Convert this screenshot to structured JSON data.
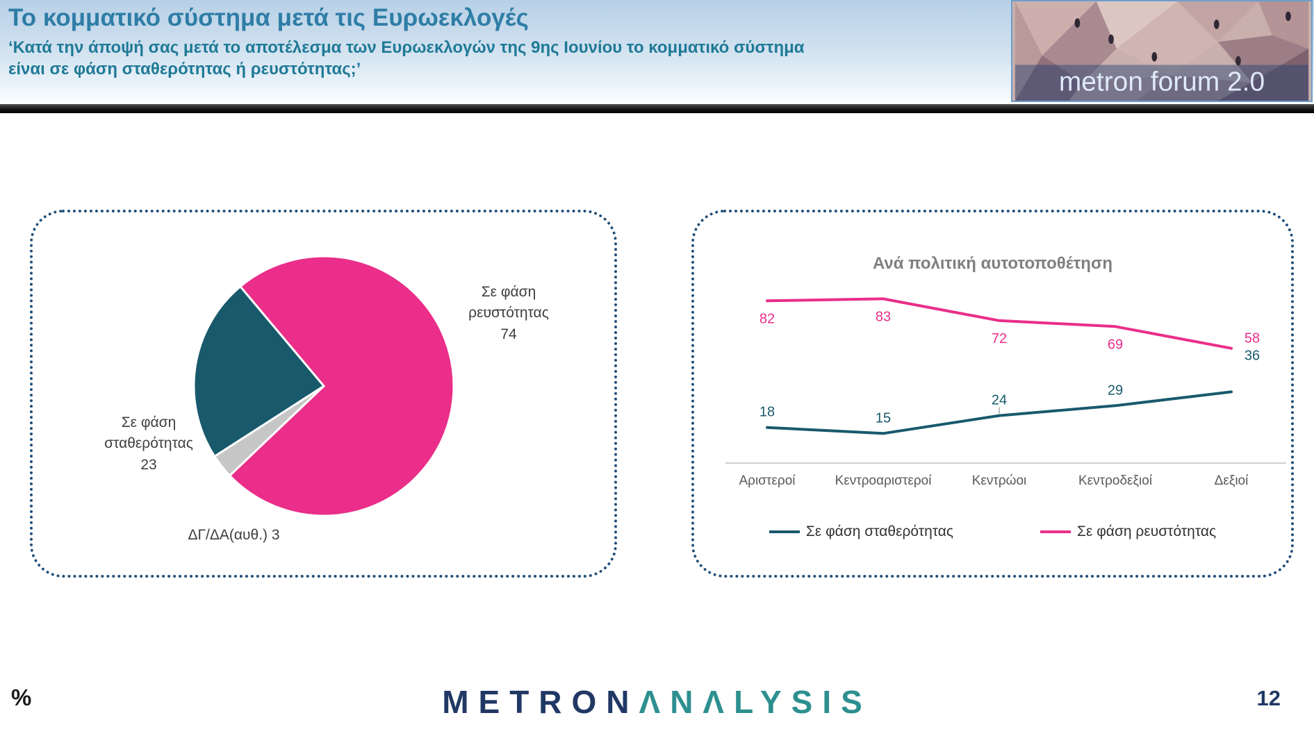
{
  "header": {
    "title": "Το κομματικό σύστημα μετά τις Ευρωεκλογές",
    "subtitle": "‘Κατά την άποψή σας μετά το αποτέλεσμα των Ευρωεκλογών της 9ης Ιουνίου το κομματικό σύστημα είναι σε φάση σταθερότητας ή ρευστότητας;’",
    "logo_text": "metron forum 2.0"
  },
  "footer": {
    "unit_label": "%",
    "brand_metron": "METRON",
    "brand_analysis": "ΛNΛLYSIS",
    "page_number": "12"
  },
  "colors": {
    "pink": "#EA2E89",
    "teal": "#19596C",
    "gray": "#C6C6C6",
    "navy": "#1F4E79"
  },
  "chart_data": [
    {
      "type": "pie",
      "title": "",
      "slices": [
        {
          "label": "Σε φάση ρευστότητας",
          "value": 74,
          "color": "#EA2E89"
        },
        {
          "label": "ΔΓ/ΔΑ(αυθ.)",
          "value": 3,
          "color": "#C6C6C6"
        },
        {
          "label": "Σε φάση σταθερότητας",
          "value": 23,
          "color": "#19596C"
        }
      ]
    },
    {
      "type": "line",
      "title": "Ανά πολιτική αυτοτοποθέτηση",
      "categories": [
        "Αριστεροί",
        "Κεντροαριστεροί",
        "Κεντρώοι",
        "Κεντροδεξιοί",
        "Δεξιοί"
      ],
      "series": [
        {
          "name": "Σε φάση σταθερότητας",
          "values": [
            18,
            15,
            24,
            29,
            36
          ],
          "color": "#19596C"
        },
        {
          "name": "Σε φάση ρευστότητας",
          "values": [
            82,
            83,
            72,
            69,
            58
          ],
          "color": "#EA2E89"
        }
      ],
      "ylim": [
        0,
        100
      ],
      "legend_position": "bottom",
      "grid": false
    }
  ]
}
